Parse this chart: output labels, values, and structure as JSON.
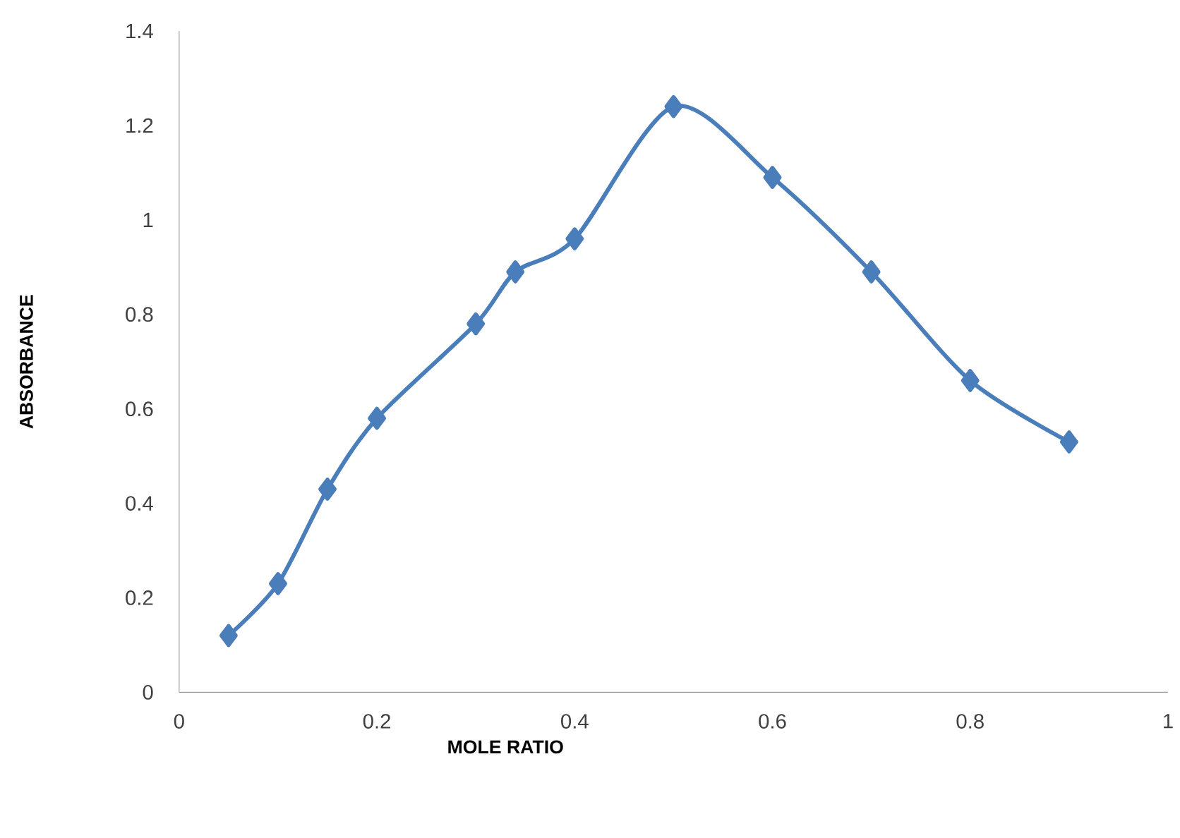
{
  "chart_data": {
    "type": "line",
    "xlabel": "MOLE RATIO",
    "ylabel": "ABSORBANCE",
    "x": [
      0.05,
      0.1,
      0.15,
      0.2,
      0.3,
      0.34,
      0.4,
      0.5,
      0.6,
      0.7,
      0.8,
      0.9
    ],
    "series": [
      {
        "color": "#4a7ebb",
        "values": [
          0.12,
          0.23,
          0.43,
          0.58,
          0.78,
          0.89,
          0.96,
          1.24,
          1.09,
          0.89,
          0.66,
          0.53
        ]
      }
    ],
    "xlim": [
      0,
      1
    ],
    "ylim": [
      0,
      1.4
    ],
    "xticks": [
      0,
      0.2,
      0.4,
      0.6,
      0.8,
      1
    ],
    "yticks": [
      0,
      0.2,
      0.4,
      0.6,
      0.8,
      1,
      1.2,
      1.4
    ],
    "marker": "diamond",
    "line_style": "solid"
  }
}
